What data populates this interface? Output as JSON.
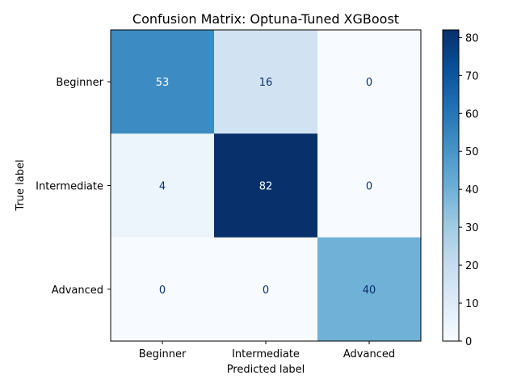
{
  "chart_data": {
    "type": "heatmap",
    "title": "Confusion Matrix: Optuna-Tuned XGBoost",
    "xlabel": "Predicted label",
    "ylabel": "True label",
    "x_categories": [
      "Beginner",
      "Intermediate",
      "Advanced"
    ],
    "y_categories": [
      "Beginner",
      "Intermediate",
      "Advanced"
    ],
    "values": [
      [
        53,
        16,
        0
      ],
      [
        4,
        82,
        0
      ],
      [
        0,
        0,
        40
      ]
    ],
    "colormap": "Blues",
    "color_range": [
      0,
      82
    ],
    "colorbar_ticks": [
      0,
      10,
      20,
      30,
      40,
      50,
      60,
      70,
      80
    ],
    "grid": false
  }
}
